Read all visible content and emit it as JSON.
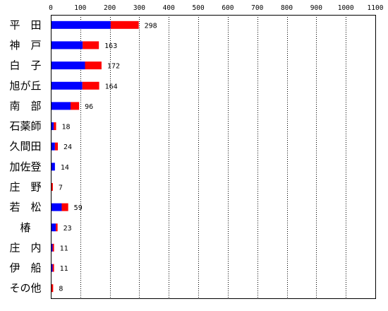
{
  "chart_data": {
    "type": "bar",
    "stacked": true,
    "orientation": "horizontal",
    "categories": [
      "平　田",
      "神　戸",
      "白　子",
      "旭が丘",
      "南　部",
      "石薬師",
      "久間田",
      "加佐登",
      "庄　野",
      "若　松",
      "椿",
      "庄　内",
      "伊　船",
      "その他"
    ],
    "series": [
      {
        "color": "#0000ff",
        "values": [
          203,
          108,
          116,
          107,
          67,
          10,
          14,
          14,
          0,
          37,
          17,
          6,
          6,
          0
        ]
      },
      {
        "color": "#ff0000",
        "values": [
          95,
          55,
          56,
          57,
          29,
          8,
          10,
          0,
          7,
          22,
          6,
          5,
          5,
          8
        ]
      }
    ],
    "totals": [
      298,
      163,
      172,
      164,
      96,
      18,
      24,
      14,
      7,
      59,
      23,
      11,
      11,
      8
    ],
    "xticks": [
      0,
      100,
      200,
      300,
      400,
      500,
      600,
      700,
      800,
      900,
      1000,
      1100
    ],
    "xlim": [
      0,
      1100
    ],
    "grid": "vertical dotted",
    "axis_position": "top",
    "title": "",
    "xlabel": "",
    "ylabel": ""
  }
}
